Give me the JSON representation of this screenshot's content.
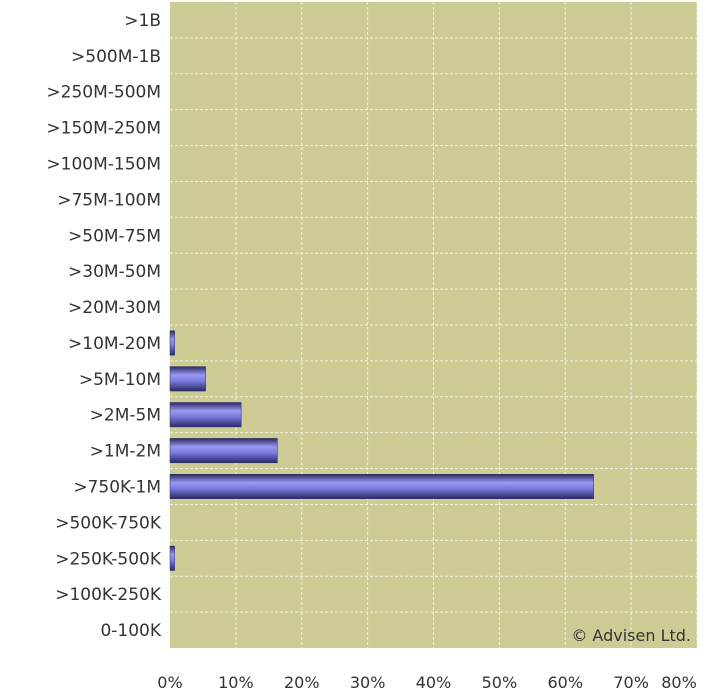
{
  "chart_data": {
    "type": "bar",
    "orientation": "horizontal",
    "categories": [
      ">1B",
      ">500M-1B",
      ">250M-500M",
      ">150M-250M",
      ">100M-150M",
      ">75M-100M",
      ">50M-75M",
      ">30M-50M",
      ">20M-30M",
      ">10M-20M",
      ">5M-10M",
      ">2M-5M",
      ">1M-2M",
      ">750K-1M",
      ">500K-750K",
      ">250K-500K",
      ">100K-250K",
      "0-100K"
    ],
    "values": [
      0,
      0,
      0,
      0,
      0,
      0,
      0,
      0,
      0,
      0.7,
      5.4,
      10.8,
      16.3,
      64.3,
      0,
      0.7,
      0,
      0
    ],
    "xlim": [
      0,
      80
    ],
    "x_ticks": [
      "0%",
      "10%",
      "20%",
      "30%",
      "40%",
      "50%",
      "60%",
      "70%",
      "80%"
    ],
    "grid": true,
    "plot_background": "#cdcc95",
    "grid_color": "#f3f3e2",
    "bar_color": "#7777dd",
    "bar_dark_color": "#2a2a66",
    "watermark": "© Advisen Ltd."
  }
}
